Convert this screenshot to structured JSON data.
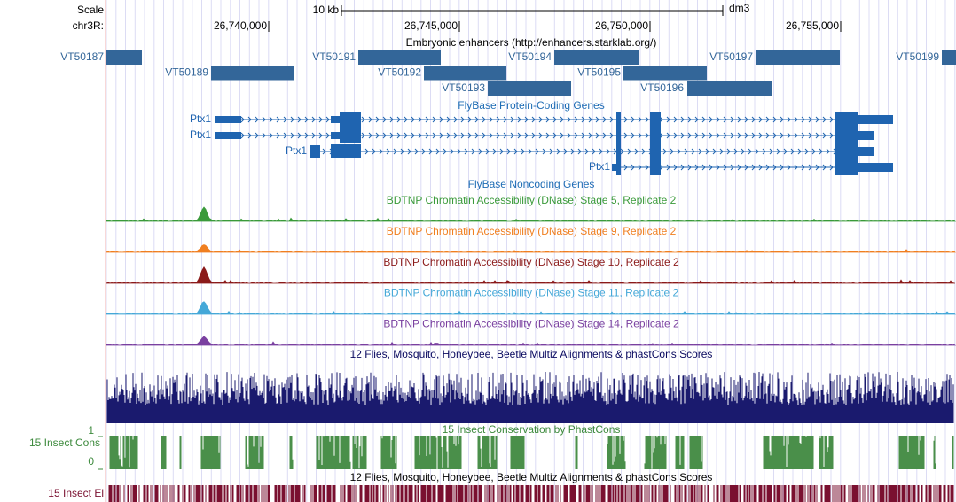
{
  "header": {
    "scale": "Scale",
    "scale_bar": "10 kb",
    "assembly": "dm3",
    "chrom": "chr3R:",
    "positions": [
      "26,740,000",
      "26,745,000",
      "26,750,000",
      "26,755,000"
    ]
  },
  "enhancers": {
    "title": "Embryonic enhancers (http://enhancers.starklab.org/)",
    "items": [
      "VT50187",
      "VT50189",
      "VT50191",
      "VT50192",
      "VT50193",
      "VT50194",
      "VT50195",
      "VT50196",
      "VT50197",
      "VT50199"
    ]
  },
  "genes": {
    "title": "FlyBase Protein-Coding Genes",
    "items": [
      "Ptx1",
      "Ptx1",
      "Ptx1",
      "Ptx1"
    ]
  },
  "noncoding": {
    "title": "FlyBase Noncoding Genes"
  },
  "dnase": [
    "BDTNP Chromatin Accessibility (DNase) Stage 5, Replicate 2",
    "BDTNP Chromatin Accessibility (DNase) Stage 9, Replicate 2",
    "BDTNP Chromatin Accessibility (DNase) Stage 10, Replicate 2",
    "BDTNP Chromatin Accessibility (DNase) Stage 11, Replicate 2",
    "BDTNP Chromatin Accessibility (DNase) Stage 14, Replicate 2"
  ],
  "multiz": {
    "title": "12 Flies, Mosquito, Honeybee, Beetle Multiz Alignments & phastCons Scores"
  },
  "phastcons": {
    "title": "15 Insect Conservation by PhastCons",
    "side_label": "15 Insect Cons",
    "max": "1",
    "min": "0"
  },
  "elements": {
    "title": "12 Flies, Mosquito, Honeybee, Beetle Multiz Alignments & phastCons Scores",
    "side_label": "15 Insect El"
  }
}
